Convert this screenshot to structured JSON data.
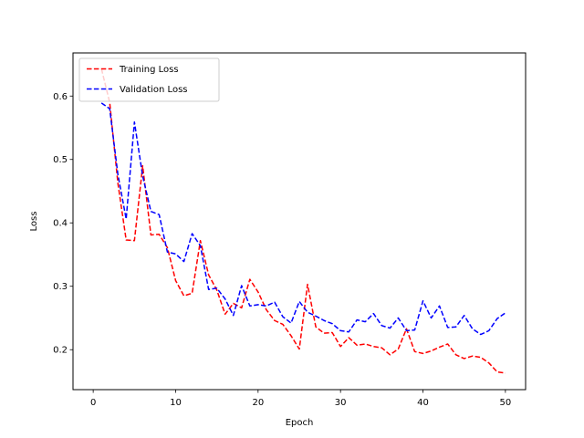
{
  "chart_data": {
    "type": "line",
    "title": "",
    "xlabel": "Epoch",
    "ylabel": "Loss",
    "xlim": [
      -2.45,
      52.45
    ],
    "ylim": [
      0.137,
      0.668
    ],
    "xticks": [
      0,
      10,
      20,
      30,
      40,
      50
    ],
    "yticks": [
      0.2,
      0.3,
      0.4,
      0.5,
      0.6
    ],
    "ytick_labels": [
      "0.2",
      "0.3",
      "0.4",
      "0.5",
      "0.6"
    ],
    "grid": false,
    "legend_position": "upper-left",
    "x": [
      1,
      2,
      3,
      4,
      5,
      6,
      7,
      8,
      9,
      10,
      11,
      12,
      13,
      14,
      15,
      16,
      17,
      18,
      19,
      20,
      21,
      22,
      23,
      24,
      25,
      26,
      27,
      28,
      29,
      30,
      31,
      32,
      33,
      34,
      35,
      36,
      37,
      38,
      39,
      40,
      41,
      42,
      43,
      44,
      45,
      46,
      47,
      48,
      49,
      50
    ],
    "series": [
      {
        "name": "Training Loss",
        "color": "#ff0000",
        "style": "dashed",
        "values": [
          0.643,
          0.59,
          0.462,
          0.373,
          0.372,
          0.49,
          0.381,
          0.382,
          0.361,
          0.309,
          0.285,
          0.289,
          0.372,
          0.318,
          0.294,
          0.256,
          0.273,
          0.266,
          0.311,
          0.291,
          0.263,
          0.246,
          0.24,
          0.222,
          0.201,
          0.303,
          0.236,
          0.226,
          0.227,
          0.205,
          0.219,
          0.207,
          0.209,
          0.205,
          0.203,
          0.192,
          0.201,
          0.233,
          0.197,
          0.194,
          0.198,
          0.204,
          0.209,
          0.192,
          0.186,
          0.19,
          0.188,
          0.179,
          0.165,
          0.163
        ]
      },
      {
        "name": "Validation Loss",
        "color": "#0000ff",
        "style": "dashed",
        "values": [
          0.589,
          0.58,
          0.476,
          0.406,
          0.559,
          0.474,
          0.418,
          0.413,
          0.354,
          0.351,
          0.339,
          0.383,
          0.364,
          0.295,
          0.297,
          0.28,
          0.254,
          0.301,
          0.269,
          0.271,
          0.269,
          0.275,
          0.252,
          0.242,
          0.276,
          0.259,
          0.253,
          0.246,
          0.241,
          0.23,
          0.228,
          0.247,
          0.244,
          0.257,
          0.238,
          0.234,
          0.25,
          0.23,
          0.231,
          0.277,
          0.25,
          0.269,
          0.235,
          0.236,
          0.254,
          0.233,
          0.224,
          0.23,
          0.249,
          0.258
        ]
      }
    ]
  }
}
